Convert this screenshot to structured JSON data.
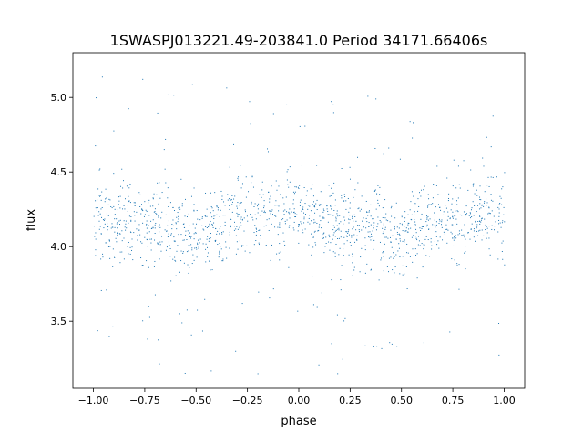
{
  "chart_data": {
    "type": "scatter",
    "title": "1SWASPJ013221.49-203841.0 Period 34171.66406s",
    "xlabel": "phase",
    "ylabel": "flux",
    "xlim": [
      -1.1,
      1.1
    ],
    "ylim": [
      3.05,
      5.3
    ],
    "x_ticks": [
      -1.0,
      -0.75,
      -0.5,
      -0.25,
      0.0,
      0.25,
      0.5,
      0.75,
      1.0
    ],
    "x_tick_labels": [
      "−1.00",
      "−0.75",
      "−0.50",
      "−0.25",
      "0.00",
      "0.25",
      "0.50",
      "0.75",
      "1.00"
    ],
    "y_ticks": [
      3.5,
      4.0,
      4.5,
      5.0
    ],
    "y_tick_labels": [
      "3.5",
      "4.0",
      "4.5",
      "5.0"
    ],
    "grid": false,
    "legend": "none",
    "marker_color": "#1f77b4",
    "x_range_of_points": [
      -1.0,
      1.0
    ],
    "y_range_of_points": [
      3.15,
      5.2
    ],
    "trend": {
      "description_phase": [
        -1.0,
        -0.75,
        -0.5,
        -0.25,
        0.0,
        0.25,
        0.5,
        0.75,
        1.0
      ],
      "median_flux": [
        4.22,
        4.14,
        4.09,
        4.2,
        4.23,
        4.14,
        4.08,
        4.19,
        4.24
      ],
      "core_spread": 0.13
    },
    "point_count_approx": 1500
  }
}
